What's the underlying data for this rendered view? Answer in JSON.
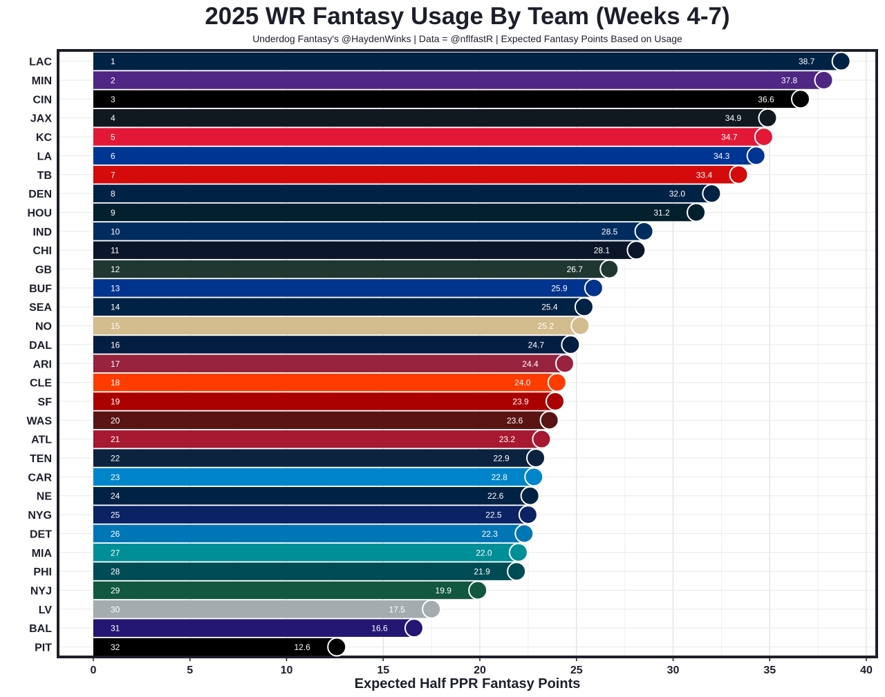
{
  "chart_data": {
    "type": "bar",
    "orientation": "horizontal",
    "title": "2025 WR Fantasy Usage By Team (Weeks 4-7)",
    "subtitle": "Underdog Fantasy's @HaydenWinks | Data = @nflfastR | Expected Fantasy Points Based on Usage",
    "xlabel": "Expected Half PPR Fantasy Points",
    "ylabel": "",
    "xlim": [
      0,
      40
    ],
    "xticks": [
      "0",
      "5",
      "10",
      "15",
      "20",
      "25",
      "30",
      "35",
      "40"
    ],
    "grid": true,
    "categories": [
      "LAC",
      "MIN",
      "CIN",
      "JAX",
      "KC",
      "LA",
      "TB",
      "DEN",
      "HOU",
      "IND",
      "CHI",
      "GB",
      "BUF",
      "SEA",
      "NO",
      "DAL",
      "ARI",
      "CLE",
      "SF",
      "WAS",
      "ATL",
      "TEN",
      "CAR",
      "NE",
      "NYG",
      "DET",
      "MIA",
      "PHI",
      "NYJ",
      "LV",
      "BAL",
      "PIT"
    ],
    "ranks": [
      "1",
      "2",
      "3",
      "4",
      "5",
      "6",
      "7",
      "8",
      "9",
      "10",
      "11",
      "12",
      "13",
      "14",
      "15",
      "16",
      "17",
      "18",
      "19",
      "20",
      "21",
      "22",
      "23",
      "24",
      "25",
      "26",
      "27",
      "28",
      "29",
      "30",
      "31",
      "32"
    ],
    "values": [
      38.7,
      37.8,
      36.6,
      34.9,
      34.7,
      34.3,
      33.4,
      32.0,
      31.2,
      28.5,
      28.1,
      26.7,
      25.9,
      25.4,
      25.2,
      24.7,
      24.4,
      24.0,
      23.9,
      23.6,
      23.2,
      22.9,
      22.8,
      22.6,
      22.5,
      22.3,
      22.0,
      21.9,
      19.9,
      17.5,
      16.6,
      12.6
    ],
    "value_labels": [
      "38.7",
      "37.8",
      "36.6",
      "34.9",
      "34.7",
      "34.3",
      "33.4",
      "32.0",
      "31.2",
      "28.5",
      "28.1",
      "26.7",
      "25.9",
      "25.4",
      "25.2",
      "24.7",
      "24.4",
      "24.0",
      "23.9",
      "23.6",
      "23.2",
      "22.9",
      "22.8",
      "22.6",
      "22.5",
      "22.3",
      "22.0",
      "21.9",
      "19.9",
      "17.5",
      "16.6",
      "12.6"
    ],
    "colors": [
      "#002244",
      "#4F2683",
      "#000000",
      "#101820",
      "#E31837",
      "#003594",
      "#D50A0A",
      "#002244",
      "#03202F",
      "#002C5F",
      "#0B162A",
      "#203731",
      "#00338D",
      "#002244",
      "#D3BC8D",
      "#041E42",
      "#97233F",
      "#FF3C00",
      "#AA0000",
      "#5A1414",
      "#A71930",
      "#0C2340",
      "#0085CA",
      "#002244",
      "#0B2265",
      "#0076B6",
      "#008E97",
      "#004C54",
      "#125740",
      "#A5ACAF",
      "#241773",
      "#000000"
    ],
    "logo_icons": [
      "chargers-bolt-icon",
      "vikings-horn-icon",
      "bengals-b-icon",
      "jaguars-head-icon",
      "chiefs-arrowhead-icon",
      "rams-la-icon",
      "buccaneers-flag-icon",
      "broncos-horse-icon",
      "texans-bull-icon",
      "colts-horseshoe-icon",
      "bears-c-icon",
      "packers-g-icon",
      "bills-buffalo-icon",
      "seahawks-head-icon",
      "saints-fleur-icon",
      "cowboys-star-icon",
      "cardinals-head-icon",
      "browns-helmet-icon",
      "49ers-sf-icon",
      "commanders-w-icon",
      "falcons-bird-icon",
      "titans-t-icon",
      "panthers-head-icon",
      "patriots-head-icon",
      "giants-ny-icon",
      "lions-lion-icon",
      "dolphins-head-icon",
      "eagles-head-icon",
      "jets-oval-icon",
      "raiders-shield-icon",
      "ravens-head-icon",
      "steelers-badge-icon"
    ]
  }
}
